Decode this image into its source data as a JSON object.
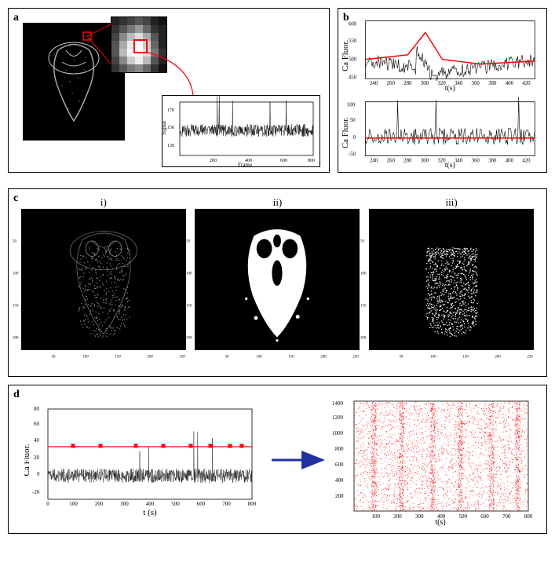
{
  "panel_a": {
    "label": "a",
    "inset_chart": {
      "ylabel": "Signal",
      "xlabel": "Frame",
      "xlim": [
        0,
        800
      ],
      "xticks": [
        200,
        400,
        600,
        800
      ],
      "ylim": [
        120,
        180
      ],
      "yticks": [
        130,
        150,
        170
      ],
      "baseline": 140
    }
  },
  "panel_b": {
    "label": "b",
    "top": {
      "ylabel": "Ca Fluor.",
      "xlabel": "t(s)",
      "xlim": [
        230,
        430
      ],
      "xticks": [
        240,
        260,
        280,
        300,
        320,
        340,
        360,
        380,
        400,
        420
      ],
      "ylim": [
        450,
        600
      ],
      "yticks": [
        450,
        500,
        550,
        600
      ],
      "trend_color": "#ff0000"
    },
    "bottom": {
      "ylabel": "Ca Fluor.",
      "xlabel": "t(s)",
      "xlim": [
        230,
        430
      ],
      "xticks": [
        240,
        260,
        280,
        300,
        320,
        340,
        360,
        380,
        400,
        420
      ],
      "ylim": [
        -50,
        100
      ],
      "yticks": [
        -50,
        0,
        50,
        100
      ],
      "trend_color": "#ff0000"
    }
  },
  "panel_c": {
    "label": "c",
    "sub_labels": [
      "i)",
      "ii)",
      "iii)"
    ],
    "axis_ticks_x": [
      50,
      100,
      150,
      200,
      250
    ],
    "axis_ticks_y": [
      50,
      100,
      150,
      200
    ],
    "img_dim": [
      256,
      220
    ]
  },
  "panel_d": {
    "label": "d",
    "left": {
      "ylabel": "Ca Fluor.",
      "xlabel": "t (s)",
      "xlim": [
        0,
        800
      ],
      "xticks": [
        0,
        100,
        200,
        300,
        400,
        500,
        600,
        700,
        800
      ],
      "ylim": [
        -30,
        80
      ],
      "yticks": [
        -20,
        0,
        20,
        40,
        60,
        80
      ],
      "marker_color": "#ff0000"
    },
    "right": {
      "ylabel": "Neuron index",
      "xlabel": "t(s)",
      "xlim": [
        0,
        800
      ],
      "xticks": [
        100,
        200,
        300,
        400,
        500,
        600,
        700,
        800
      ],
      "ylim": [
        0,
        1400
      ],
      "yticks": [
        200,
        400,
        600,
        800,
        1000,
        1200,
        1400
      ],
      "dot_color": "#ff0000"
    },
    "arrow_color": "#2030a0"
  },
  "colors": {
    "red": "#ff0000",
    "black": "#000000",
    "white": "#ffffff",
    "arrow_blue": "#2030a0"
  }
}
